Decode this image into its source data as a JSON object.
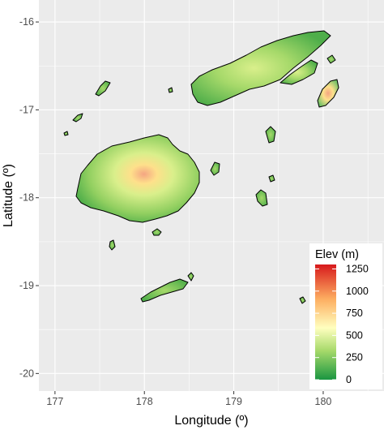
{
  "map": {
    "type": "raster-elevation",
    "x_axis": {
      "label": "Longitude (º)",
      "ticks": [
        "177",
        "178",
        "179",
        "180"
      ],
      "range": [
        176.82,
        180.68
      ]
    },
    "y_axis": {
      "label": "Latitude (º)",
      "ticks": [
        "-16",
        "-17",
        "-18",
        "-19",
        "-20"
      ],
      "range": [
        -20.2,
        -15.75
      ]
    },
    "grid": true,
    "background": "#ebebeb",
    "legend": {
      "title": "Elev (m)",
      "placement": "bottom-right",
      "ticks": [
        "1250",
        "1000",
        "750",
        "500",
        "250",
        "0"
      ],
      "min": 0,
      "max": 1300,
      "colors": [
        "#1a9641",
        "#a6d96a",
        "#ffffbf",
        "#fdae61",
        "#d7191c"
      ]
    }
  }
}
